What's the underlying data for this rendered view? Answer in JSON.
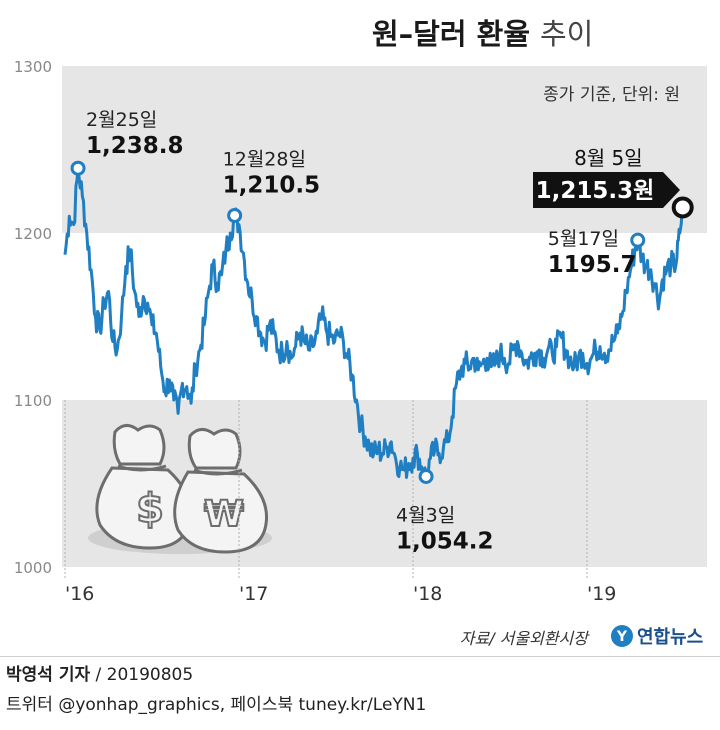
{
  "header": {
    "title_main": "원–달러 환율",
    "title_sub": "추이",
    "unit_note": "종가 기준, 단위: 원"
  },
  "source": "자료/ 서울외환시장",
  "logo": "연합뉴스",
  "credit": {
    "reporter": "박영석 기자",
    "date": "/ 20190805",
    "social": "트위터 @yonhap_graphics, 페이스북 tuney.kr/LeYN1"
  },
  "colors": {
    "line": "#1f7fc2",
    "band": "#e6e6e6",
    "callout_bg": "#111111",
    "callout_text": "#ffffff"
  },
  "chart_data": {
    "type": "line",
    "ylim": [
      1000,
      1300
    ],
    "yticks": [
      1000,
      1100,
      1200,
      1300
    ],
    "xticks": [
      {
        "label": "'16",
        "t": 0
      },
      {
        "label": "'17",
        "t": 12
      },
      {
        "label": "'18",
        "t": 24
      },
      {
        "label": "'19",
        "t": 36
      }
    ],
    "series": [
      {
        "values": [
          [
            0.0,
            1187
          ],
          [
            0.3,
            1210
          ],
          [
            0.6,
            1205
          ],
          [
            0.9,
            1238.8
          ],
          [
            1.2,
            1222
          ],
          [
            1.5,
            1200
          ],
          [
            1.8,
            1178
          ],
          [
            2.1,
            1150
          ],
          [
            2.4,
            1142
          ],
          [
            2.7,
            1158
          ],
          [
            3.0,
            1165
          ],
          [
            3.3,
            1135
          ],
          [
            3.6,
            1130
          ],
          [
            3.9,
            1150
          ],
          [
            4.2,
            1180
          ],
          [
            4.5,
            1190
          ],
          [
            4.8,
            1165
          ],
          [
            5.1,
            1150
          ],
          [
            5.4,
            1162
          ],
          [
            5.7,
            1158
          ],
          [
            6.0,
            1145
          ],
          [
            6.3,
            1140
          ],
          [
            6.6,
            1120
          ],
          [
            6.9,
            1105
          ],
          [
            7.2,
            1112
          ],
          [
            7.5,
            1100
          ],
          [
            7.8,
            1092
          ],
          [
            8.1,
            1110
          ],
          [
            8.4,
            1108
          ],
          [
            8.7,
            1098
          ],
          [
            9.0,
            1120
          ],
          [
            9.3,
            1130
          ],
          [
            9.6,
            1145
          ],
          [
            9.9,
            1165
          ],
          [
            10.2,
            1180
          ],
          [
            10.5,
            1170
          ],
          [
            10.8,
            1175
          ],
          [
            11.1,
            1190
          ],
          [
            11.4,
            1200
          ],
          [
            11.7,
            1210.5
          ],
          [
            12.0,
            1205
          ],
          [
            12.3,
            1188
          ],
          [
            12.6,
            1170
          ],
          [
            12.9,
            1160
          ],
          [
            13.2,
            1150
          ],
          [
            13.5,
            1140
          ],
          [
            13.8,
            1135
          ],
          [
            14.1,
            1145
          ],
          [
            14.4,
            1140
          ],
          [
            14.7,
            1130
          ],
          [
            15.0,
            1128
          ],
          [
            15.3,
            1135
          ],
          [
            15.6,
            1125
          ],
          [
            15.9,
            1132
          ],
          [
            16.2,
            1140
          ],
          [
            16.5,
            1135
          ],
          [
            16.8,
            1130
          ],
          [
            17.1,
            1132
          ],
          [
            17.4,
            1140
          ],
          [
            17.7,
            1150
          ],
          [
            18.0,
            1142
          ],
          [
            18.3,
            1138
          ],
          [
            18.6,
            1135
          ],
          [
            18.9,
            1140
          ],
          [
            19.2,
            1135
          ],
          [
            19.5,
            1125
          ],
          [
            19.8,
            1115
          ],
          [
            20.1,
            1100
          ],
          [
            20.4,
            1085
          ],
          [
            20.7,
            1078
          ],
          [
            21.0,
            1072
          ],
          [
            21.3,
            1068
          ],
          [
            21.6,
            1070
          ],
          [
            21.9,
            1068
          ],
          [
            22.2,
            1072
          ],
          [
            22.5,
            1075
          ],
          [
            22.8,
            1065
          ],
          [
            23.1,
            1060
          ],
          [
            23.4,
            1058
          ],
          [
            23.7,
            1062
          ],
          [
            24.0,
            1065
          ],
          [
            24.3,
            1068
          ],
          [
            24.6,
            1060
          ],
          [
            24.9,
            1054.2
          ],
          [
            25.2,
            1065
          ],
          [
            25.5,
            1070
          ],
          [
            25.8,
            1068
          ],
          [
            26.1,
            1072
          ],
          [
            26.4,
            1075
          ],
          [
            26.7,
            1090
          ],
          [
            27.0,
            1110
          ],
          [
            27.3,
            1118
          ],
          [
            27.6,
            1122
          ],
          [
            27.9,
            1120
          ],
          [
            28.2,
            1125
          ],
          [
            28.5,
            1118
          ],
          [
            28.8,
            1122
          ],
          [
            29.1,
            1125
          ],
          [
            29.4,
            1120
          ],
          [
            29.7,
            1122
          ],
          [
            30.0,
            1128
          ],
          [
            30.3,
            1125
          ],
          [
            30.6,
            1122
          ],
          [
            30.9,
            1130
          ],
          [
            31.2,
            1135
          ],
          [
            31.5,
            1128
          ],
          [
            31.8,
            1122
          ],
          [
            32.1,
            1125
          ],
          [
            32.4,
            1128
          ],
          [
            32.7,
            1130
          ],
          [
            33.0,
            1125
          ],
          [
            33.3,
            1130
          ],
          [
            33.6,
            1128
          ],
          [
            33.9,
            1132
          ],
          [
            34.2,
            1138
          ],
          [
            34.5,
            1130
          ],
          [
            34.8,
            1125
          ],
          [
            35.1,
            1120
          ],
          [
            35.4,
            1125
          ],
          [
            35.7,
            1128
          ],
          [
            36.0,
            1122
          ],
          [
            36.3,
            1125
          ],
          [
            36.6,
            1130
          ],
          [
            36.9,
            1132
          ],
          [
            37.2,
            1128
          ],
          [
            37.5,
            1130
          ],
          [
            37.8,
            1135
          ],
          [
            38.1,
            1140
          ],
          [
            38.4,
            1150
          ],
          [
            38.7,
            1165
          ],
          [
            39.0,
            1178
          ],
          [
            39.3,
            1190
          ],
          [
            39.5,
            1195.7
          ],
          [
            39.8,
            1185
          ],
          [
            40.1,
            1180
          ],
          [
            40.4,
            1178
          ],
          [
            40.7,
            1168
          ],
          [
            41.0,
            1160
          ],
          [
            41.2,
            1172
          ],
          [
            41.5,
            1178
          ],
          [
            41.8,
            1182
          ],
          [
            42.0,
            1180
          ],
          [
            42.2,
            1185
          ],
          [
            42.4,
            1200
          ],
          [
            42.6,
            1215.3
          ]
        ]
      }
    ],
    "annotations": [
      {
        "date": "2월25일",
        "value": "1,238.8",
        "t": 0.9,
        "y": 1238.8
      },
      {
        "date": "12월28일",
        "value": "1,210.5",
        "t": 11.7,
        "y": 1210.5
      },
      {
        "date": "4월3일",
        "value": "1,054.2",
        "t": 24.9,
        "y": 1054.2
      },
      {
        "date": "5월17일",
        "value": "1195.7",
        "t": 39.5,
        "y": 1195.7
      },
      {
        "date": "8월 5일",
        "value": "1,215.3원",
        "t": 42.6,
        "y": 1215.3,
        "highlight": true
      }
    ]
  }
}
